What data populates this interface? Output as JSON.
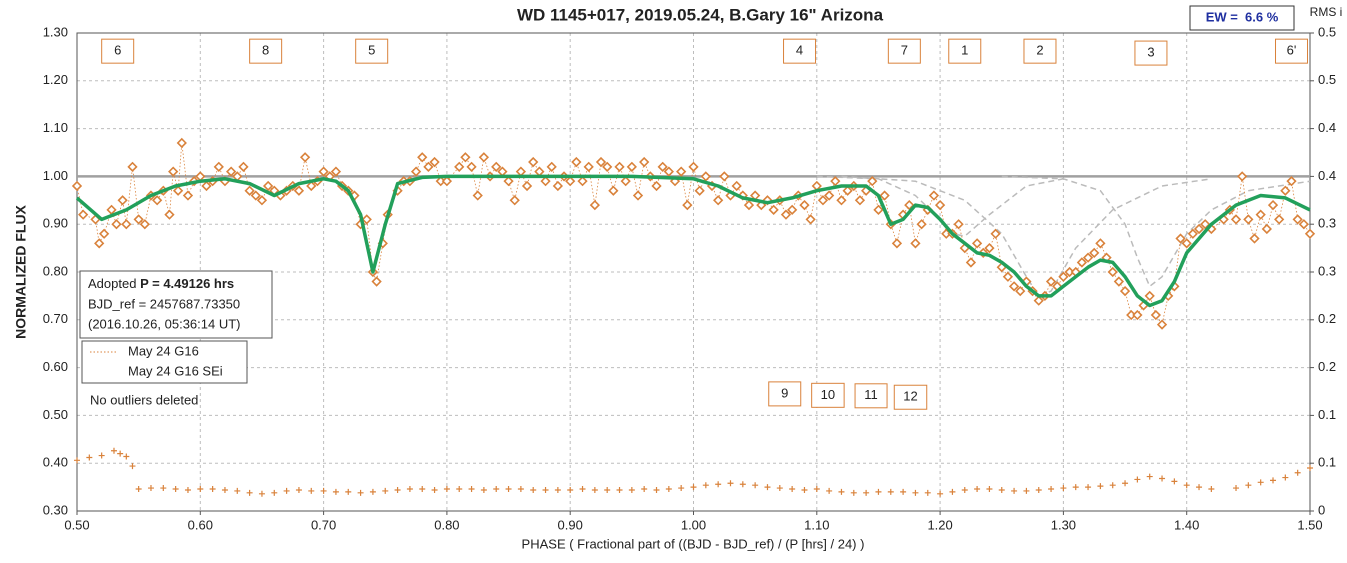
{
  "chart_data": {
    "type": "line",
    "title": "WD 1145+017, 2019.05.24, B.Gary 16\" Arizona",
    "xlabel": "PHASE ( Fractional part of ((BJD - BJD_ref) / (P [hrs] / 24) )",
    "ylabel": "NORMALIZED FLUX",
    "y2label": "RMS i",
    "ew": "EW =  6.6 %",
    "period_label": "Adopted",
    "period": "P = 4.49126 hrs",
    "bjd_ref": "BJD_ref = 2457687.73350",
    "ref_date": "(2016.10.26, 05:36:14 UT)",
    "note": "No outliers deleted",
    "grid": true,
    "legend": "middle-left",
    "hline": 1,
    "xlim": [
      0.5,
      1.5
    ],
    "xticks": [
      {
        "value": 0.5,
        "label": "0.50"
      },
      {
        "value": 0.6,
        "label": "0.60"
      },
      {
        "value": 0.7,
        "label": "0.70"
      },
      {
        "value": 0.8,
        "label": "0.80"
      },
      {
        "value": 0.9,
        "label": "0.90"
      },
      {
        "value": 1.0,
        "label": "1.00"
      },
      {
        "value": 1.1,
        "label": "1.10"
      },
      {
        "value": 1.2,
        "label": "1.20"
      },
      {
        "value": 1.3,
        "label": "1.30"
      },
      {
        "value": 1.4,
        "label": "1.40"
      },
      {
        "value": 1.5,
        "label": "1.50"
      }
    ],
    "ylim": [
      0.3,
      1.3
    ],
    "yticks": [
      {
        "value": 0.3,
        "label": "0.30"
      },
      {
        "value": 0.4,
        "label": "0.40"
      },
      {
        "value": 0.5,
        "label": "0.50"
      },
      {
        "value": 0.6,
        "label": "0.60"
      },
      {
        "value": 0.7,
        "label": "0.70"
      },
      {
        "value": 0.8,
        "label": "0.80"
      },
      {
        "value": 0.9,
        "label": "0.90"
      },
      {
        "value": 1.0,
        "label": "1.00"
      },
      {
        "value": 1.1,
        "label": "1.10"
      },
      {
        "value": 1.2,
        "label": "1.20"
      },
      {
        "value": 1.3,
        "label": "1.30"
      }
    ],
    "y2lim": [
      0,
      0.5
    ],
    "y2ticks": [
      0,
      {
        "value": 0.05,
        "label": "0.1"
      },
      0.1,
      {
        "value": 0.15,
        "label": "0.2"
      },
      0.2,
      {
        "value": 0.25,
        "label": "0.3"
      },
      0.3,
      {
        "value": 0.35,
        "label": "0.4"
      },
      0.4,
      {
        "value": 0.45,
        "label": "0.5"
      },
      0.5
    ],
    "annotations": [
      {
        "text": "6",
        "x": 0.533,
        "y": 1.262
      },
      {
        "text": "8",
        "x": 0.653,
        "y": 1.262
      },
      {
        "text": "5",
        "x": 0.739,
        "y": 1.262
      },
      {
        "text": "4",
        "x": 1.086,
        "y": 1.262
      },
      {
        "text": "7",
        "x": 1.171,
        "y": 1.262
      },
      {
        "text": "1",
        "x": 1.22,
        "y": 1.262
      },
      {
        "text": "2",
        "x": 1.281,
        "y": 1.262
      },
      {
        "text": "3",
        "x": 1.371,
        "y": 1.258
      },
      {
        "text": "6'",
        "x": 1.485,
        "y": 1.262
      },
      {
        "text": "9",
        "x": 1.074,
        "y": 0.545
      },
      {
        "text": "10",
        "x": 1.109,
        "y": 0.542
      },
      {
        "text": "11",
        "x": 1.144,
        "y": 0.541
      },
      {
        "text": "12",
        "x": 1.176,
        "y": 0.538
      }
    ],
    "series": [
      {
        "name": "May 24 G16",
        "color": "#d9823b",
        "marker": "diamond",
        "style": "dotted",
        "x": [
          0.5,
          0.505,
          0.515,
          0.518,
          0.522,
          0.528,
          0.532,
          0.537,
          0.54,
          0.545,
          0.55,
          0.555,
          0.56,
          0.565,
          0.57,
          0.575,
          0.578,
          0.582,
          0.585,
          0.59,
          0.595,
          0.6,
          0.605,
          0.61,
          0.615,
          0.62,
          0.625,
          0.63,
          0.635,
          0.64,
          0.645,
          0.65,
          0.655,
          0.66,
          0.665,
          0.67,
          0.675,
          0.68,
          0.685,
          0.69,
          0.695,
          0.7,
          0.705,
          0.71,
          0.715,
          0.72,
          0.725,
          0.73,
          0.735,
          0.74,
          0.743,
          0.748,
          0.752,
          0.76,
          0.765,
          0.77,
          0.775,
          0.78,
          0.785,
          0.79,
          0.795,
          0.8,
          0.81,
          0.815,
          0.82,
          0.825,
          0.83,
          0.835,
          0.84,
          0.845,
          0.85,
          0.855,
          0.86,
          0.865,
          0.87,
          0.875,
          0.88,
          0.885,
          0.89,
          0.895,
          0.9,
          0.905,
          0.91,
          0.915,
          0.92,
          0.925,
          0.93,
          0.935,
          0.94,
          0.945,
          0.95,
          0.955,
          0.96,
          0.965,
          0.97,
          0.975,
          0.98,
          0.985,
          0.99,
          0.995,
          1.0,
          1.005,
          1.01,
          1.015,
          1.02,
          1.025,
          1.03,
          1.035,
          1.04,
          1.045,
          1.05,
          1.055,
          1.06,
          1.065,
          1.07,
          1.075,
          1.08,
          1.085,
          1.09,
          1.095,
          1.1,
          1.105,
          1.11,
          1.115,
          1.12,
          1.125,
          1.13,
          1.135,
          1.14,
          1.145,
          1.15,
          1.155,
          1.16,
          1.165,
          1.17,
          1.175,
          1.18,
          1.185,
          1.19,
          1.195,
          1.2,
          1.205,
          1.21,
          1.215,
          1.22,
          1.225,
          1.23,
          1.235,
          1.24,
          1.245,
          1.25,
          1.255,
          1.26,
          1.265,
          1.27,
          1.275,
          1.28,
          1.285,
          1.29,
          1.295,
          1.3,
          1.305,
          1.31,
          1.315,
          1.32,
          1.325,
          1.33,
          1.335,
          1.34,
          1.345,
          1.35,
          1.355,
          1.36,
          1.365,
          1.37,
          1.375,
          1.38,
          1.385,
          1.39,
          1.395,
          1.4,
          1.405,
          1.41,
          1.415,
          1.42,
          1.43,
          1.435,
          1.44,
          1.445,
          1.45,
          1.455,
          1.46,
          1.465,
          1.47,
          1.475,
          1.48,
          1.485,
          1.49,
          1.495,
          1.5
        ],
        "values": [
          0.98,
          0.92,
          0.91,
          0.86,
          0.88,
          0.93,
          0.9,
          0.95,
          0.9,
          1.02,
          0.91,
          0.9,
          0.96,
          0.95,
          0.97,
          0.92,
          1.01,
          0.97,
          1.07,
          0.96,
          0.99,
          1.0,
          0.98,
          0.99,
          1.02,
          0.99,
          1.01,
          1.0,
          1.02,
          0.97,
          0.96,
          0.95,
          0.98,
          0.97,
          0.96,
          0.97,
          0.98,
          0.97,
          1.04,
          0.98,
          0.99,
          1.01,
          1.0,
          1.01,
          0.98,
          0.97,
          0.96,
          0.9,
          0.91,
          0.8,
          0.78,
          0.86,
          0.92,
          0.97,
          0.99,
          0.99,
          1.01,
          1.04,
          1.02,
          1.03,
          0.99,
          0.99,
          1.02,
          1.04,
          1.02,
          0.96,
          1.04,
          1.0,
          1.02,
          1.01,
          0.99,
          0.95,
          1.01,
          0.98,
          1.03,
          1.01,
          0.99,
          1.02,
          0.98,
          1.0,
          0.99,
          1.03,
          0.99,
          1.02,
          0.94,
          1.03,
          1.02,
          0.97,
          1.02,
          0.99,
          1.02,
          0.96,
          1.03,
          1.0,
          0.98,
          1.02,
          1.01,
          0.99,
          1.01,
          0.94,
          1.02,
          0.97,
          1.0,
          0.98,
          0.95,
          1.0,
          0.96,
          0.98,
          0.96,
          0.94,
          0.96,
          0.94,
          0.95,
          0.93,
          0.95,
          0.92,
          0.93,
          0.96,
          0.94,
          0.91,
          0.98,
          0.95,
          0.96,
          0.99,
          0.95,
          0.97,
          0.98,
          0.95,
          0.97,
          0.99,
          0.93,
          0.96,
          0.9,
          0.86,
          0.92,
          0.94,
          0.86,
          0.9,
          0.93,
          0.96,
          0.94,
          0.88,
          0.88,
          0.9,
          0.85,
          0.82,
          0.86,
          0.84,
          0.85,
          0.88,
          0.81,
          0.79,
          0.77,
          0.76,
          0.78,
          0.76,
          0.74,
          0.75,
          0.78,
          0.77,
          0.79,
          0.8,
          0.8,
          0.82,
          0.83,
          0.84,
          0.86,
          0.83,
          0.8,
          0.78,
          0.76,
          0.71,
          0.71,
          0.73,
          0.75,
          0.71,
          0.69,
          0.75,
          0.77,
          0.87,
          0.86,
          0.88,
          0.89,
          0.9,
          0.89,
          0.91,
          0.93,
          0.91,
          1.0,
          0.91,
          0.87,
          0.92,
          0.89,
          0.94,
          0.91,
          0.97,
          0.99,
          0.91,
          0.9,
          0.88
        ]
      },
      {
        "name": "May 24 G16 SEi",
        "color": "#d9823b",
        "marker": "plus",
        "axis": "y2",
        "x": [
          0.5,
          0.51,
          0.52,
          0.53,
          0.535,
          0.54,
          0.545,
          0.55,
          0.56,
          0.57,
          0.58,
          0.59,
          0.6,
          0.61,
          0.62,
          0.63,
          0.64,
          0.65,
          0.66,
          0.67,
          0.68,
          0.69,
          0.7,
          0.71,
          0.72,
          0.73,
          0.74,
          0.75,
          0.76,
          0.77,
          0.78,
          0.79,
          0.8,
          0.81,
          0.82,
          0.83,
          0.84,
          0.85,
          0.86,
          0.87,
          0.88,
          0.89,
          0.9,
          0.91,
          0.92,
          0.93,
          0.94,
          0.95,
          0.96,
          0.97,
          0.98,
          0.99,
          1.0,
          1.01,
          1.02,
          1.03,
          1.04,
          1.05,
          1.06,
          1.07,
          1.08,
          1.09,
          1.1,
          1.11,
          1.12,
          1.13,
          1.14,
          1.15,
          1.16,
          1.17,
          1.18,
          1.19,
          1.2,
          1.21,
          1.22,
          1.23,
          1.24,
          1.25,
          1.26,
          1.27,
          1.28,
          1.29,
          1.3,
          1.31,
          1.32,
          1.33,
          1.34,
          1.35,
          1.36,
          1.37,
          1.38,
          1.39,
          1.4,
          1.41,
          1.42,
          1.44,
          1.45,
          1.46,
          1.47,
          1.48,
          1.49,
          1.5
        ],
        "values": [
          0.053,
          0.056,
          0.058,
          0.063,
          0.06,
          0.057,
          0.047,
          0.023,
          0.024,
          0.024,
          0.023,
          0.022,
          0.023,
          0.023,
          0.022,
          0.021,
          0.019,
          0.018,
          0.019,
          0.021,
          0.022,
          0.021,
          0.021,
          0.02,
          0.02,
          0.019,
          0.02,
          0.021,
          0.022,
          0.023,
          0.023,
          0.022,
          0.023,
          0.023,
          0.023,
          0.022,
          0.023,
          0.023,
          0.023,
          0.022,
          0.022,
          0.022,
          0.022,
          0.023,
          0.022,
          0.022,
          0.022,
          0.022,
          0.023,
          0.022,
          0.023,
          0.024,
          0.025,
          0.027,
          0.028,
          0.029,
          0.028,
          0.027,
          0.025,
          0.024,
          0.023,
          0.022,
          0.023,
          0.021,
          0.02,
          0.019,
          0.019,
          0.02,
          0.02,
          0.02,
          0.019,
          0.019,
          0.018,
          0.02,
          0.022,
          0.023,
          0.023,
          0.022,
          0.021,
          0.021,
          0.022,
          0.023,
          0.024,
          0.025,
          0.025,
          0.026,
          0.027,
          0.029,
          0.033,
          0.036,
          0.034,
          0.031,
          0.027,
          0.025,
          0.023,
          0.024,
          0.027,
          0.03,
          0.032,
          0.035,
          0.04,
          0.045
        ]
      },
      {
        "color": "#bbbbbb",
        "style": "dashed",
        "x": [
          1.1,
          1.15,
          1.18,
          1.2,
          1.21,
          1.22,
          1.24,
          1.27,
          1.3
        ],
        "values": [
          1.0,
          0.995,
          0.96,
          0.91,
          0.88,
          0.875,
          0.92,
          0.98,
          0.995
        ]
      },
      {
        "color": "#bbbbbb",
        "style": "dashed",
        "x": [
          1.12,
          1.18,
          1.22,
          1.25,
          1.27,
          1.28,
          1.29,
          1.31,
          1.34,
          1.38,
          1.42
        ],
        "values": [
          1.0,
          0.99,
          0.95,
          0.88,
          0.79,
          0.75,
          0.76,
          0.85,
          0.93,
          0.98,
          0.995
        ]
      },
      {
        "color": "#bbbbbb",
        "style": "dashed",
        "x": [
          1.25,
          1.3,
          1.33,
          1.35,
          1.36,
          1.37,
          1.38,
          1.4,
          1.42,
          1.45,
          1.5
        ],
        "values": [
          1.0,
          0.995,
          0.97,
          0.9,
          0.83,
          0.77,
          0.79,
          0.88,
          0.93,
          0.97,
          0.99
        ]
      },
      {
        "color": "#22a05b",
        "style": "solid",
        "x": [
          0.5,
          0.52,
          0.54,
          0.56,
          0.58,
          0.6,
          0.62,
          0.64,
          0.66,
          0.68,
          0.7,
          0.71,
          0.72,
          0.73,
          0.74,
          0.75,
          0.76,
          0.78,
          0.8,
          0.85,
          0.9,
          0.95,
          1.0,
          1.02,
          1.04,
          1.06,
          1.08,
          1.1,
          1.12,
          1.14,
          1.15,
          1.16,
          1.17,
          1.18,
          1.19,
          1.2,
          1.21,
          1.22,
          1.23,
          1.24,
          1.25,
          1.26,
          1.27,
          1.28,
          1.29,
          1.3,
          1.31,
          1.32,
          1.33,
          1.34,
          1.35,
          1.36,
          1.37,
          1.38,
          1.39,
          1.4,
          1.42,
          1.44,
          1.46,
          1.48,
          1.5
        ],
        "values": [
          0.955,
          0.91,
          0.93,
          0.96,
          0.98,
          0.99,
          0.995,
          0.985,
          0.96,
          0.985,
          0.995,
          0.99,
          0.97,
          0.92,
          0.8,
          0.9,
          0.985,
          0.998,
          1.0,
          1.0,
          1.0,
          1.0,
          0.995,
          0.98,
          0.955,
          0.945,
          0.955,
          0.97,
          0.98,
          0.98,
          0.96,
          0.9,
          0.91,
          0.94,
          0.935,
          0.91,
          0.88,
          0.86,
          0.84,
          0.835,
          0.82,
          0.8,
          0.77,
          0.75,
          0.75,
          0.77,
          0.79,
          0.81,
          0.825,
          0.82,
          0.79,
          0.75,
          0.73,
          0.74,
          0.78,
          0.84,
          0.9,
          0.94,
          0.96,
          0.955,
          0.93
        ]
      }
    ]
  }
}
